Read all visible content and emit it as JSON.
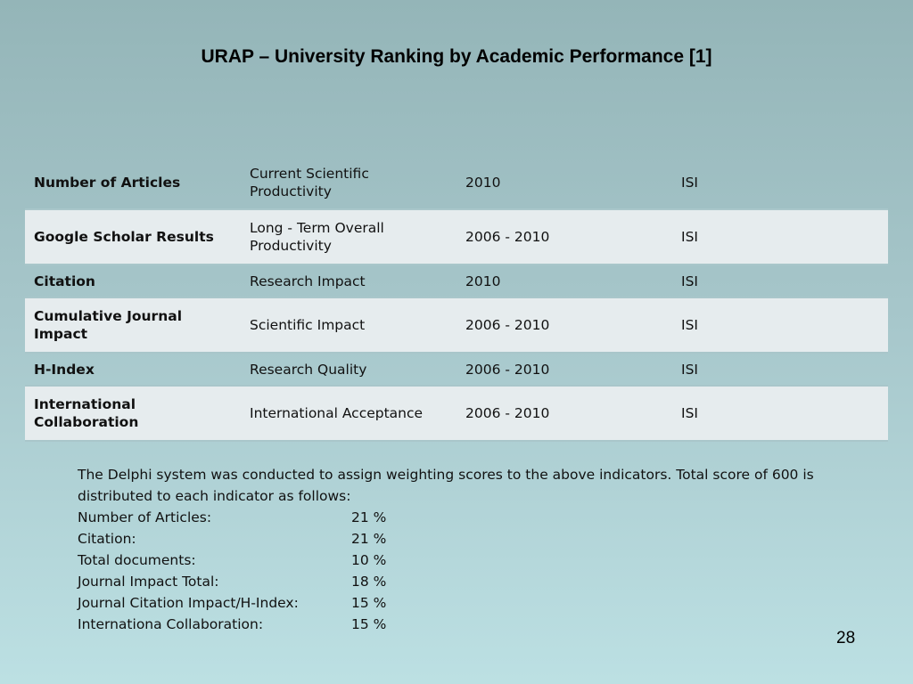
{
  "slide": {
    "title": "URAP – University Ranking by Academic Performance [1]",
    "page_number": "28"
  },
  "table": {
    "rows": [
      {
        "indicator": "Number of Articles",
        "measure": "Current Scientific Productivity",
        "period": "2010",
        "source": "ISI"
      },
      {
        "indicator": "Google Scholar Results",
        "measure": "Long - Term Overall Productivity",
        "period": "2006 - 2010",
        "source": "ISI"
      },
      {
        "indicator": "Citation",
        "measure": "Research Impact",
        "period": "2010",
        "source": "ISI"
      },
      {
        "indicator": "Cumulative Journal Impact",
        "measure": "Scientific Impact",
        "period": "2006 - 2010",
        "source": "ISI"
      },
      {
        "indicator": "H-Index",
        "measure": "Research Quality",
        "period": "2006 - 2010",
        "source": "ISI"
      },
      {
        "indicator": "International Collaboration",
        "measure": "International Acceptance",
        "period": "2006 - 2010",
        "source": "ISI"
      }
    ]
  },
  "notes": {
    "intro": "The Delphi system was conducted to assign weighting scores to the above indicators. Total score of 600 is distributed to each indicator as follows:",
    "weights": [
      {
        "label": "Number of Articles:",
        "value": "21 %"
      },
      {
        "label": "Citation:",
        "value": "21 %"
      },
      {
        "label": "Total documents:",
        "value": "10 %"
      },
      {
        "label": "Journal Impact Total:",
        "value": "18 %"
      },
      {
        "label": "Journal Citation Impact/H-Index:",
        "value": "15 %"
      },
      {
        "label": "Internationa Collaboration:",
        "value": "15 %"
      }
    ]
  }
}
